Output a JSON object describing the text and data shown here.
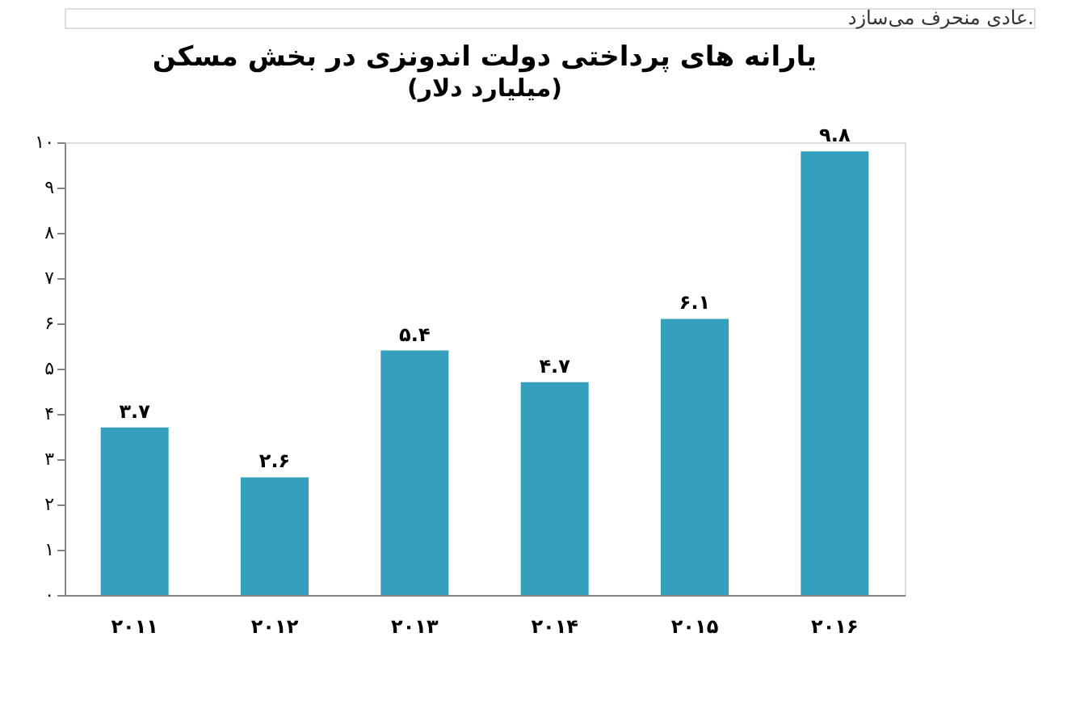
{
  "chart_data": {
    "type": "bar",
    "title": "یارانه های پرداختی دولت اندونزی در بخش مسکن",
    "subtitle": "(میلیارد دلار)",
    "annotations": [
      "عادی منحرف می‌سازد."
    ],
    "categories": [
      "۲۰۱۱",
      "۲۰۱۲",
      "۲۰۱۳",
      "۲۰۱۴",
      "۲۰۱۵",
      "۲۰۱۶"
    ],
    "values": [
      3.7,
      2.6,
      5.4,
      4.7,
      6.1,
      9.8
    ],
    "value_labels": [
      "۳.۷",
      "۲.۶",
      "۵.۴",
      "۴.۷",
      "۶.۱",
      "۹.۸"
    ],
    "color": "#35a0bd",
    "ylim": [
      0,
      10
    ],
    "yticks": [
      {
        "value": 0,
        "label": "۰"
      },
      {
        "value": 1,
        "label": "۱"
      },
      {
        "value": 2,
        "label": "۲"
      },
      {
        "value": 3,
        "label": "۳"
      },
      {
        "value": 4,
        "label": "۴"
      },
      {
        "value": 5,
        "label": "۵"
      },
      {
        "value": 6,
        "label": "۶"
      },
      {
        "value": 7,
        "label": "۷"
      },
      {
        "value": 8,
        "label": "۸"
      },
      {
        "value": 9,
        "label": "۹"
      },
      {
        "value": 10,
        "label": "۱۰"
      }
    ],
    "grid": false
  }
}
